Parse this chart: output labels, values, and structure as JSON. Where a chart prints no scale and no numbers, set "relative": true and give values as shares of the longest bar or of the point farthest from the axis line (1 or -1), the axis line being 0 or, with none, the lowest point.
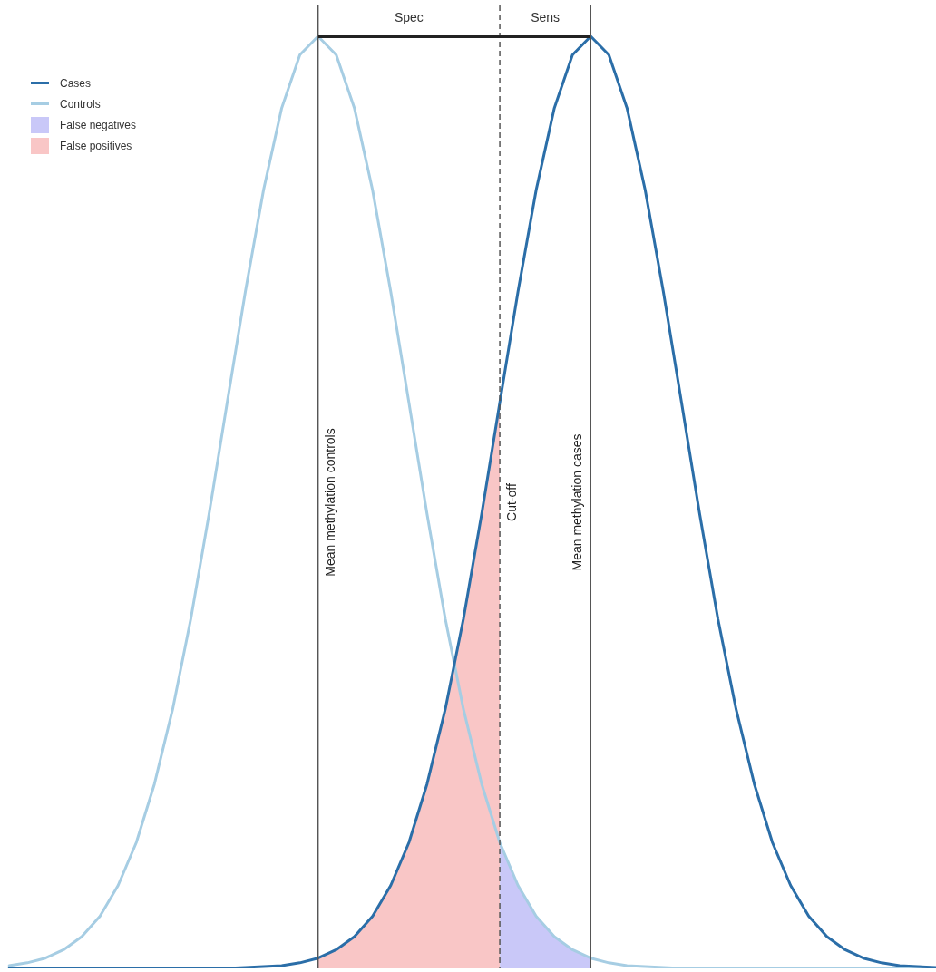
{
  "chart_data": {
    "type": "line",
    "relative": true,
    "tick_labels": false,
    "grid": false,
    "legend": "top left",
    "marker": "none",
    "categories": [
      null,
      null,
      null,
      null,
      null,
      null,
      null,
      null,
      null,
      null,
      null,
      null,
      null,
      null,
      null,
      null,
      null,
      null,
      null,
      null,
      null,
      null,
      null,
      null,
      null,
      null,
      null,
      null,
      null,
      null,
      null,
      null,
      null,
      null,
      null,
      null,
      null,
      null,
      null,
      null,
      null,
      null,
      null,
      null,
      null,
      null,
      null,
      null,
      null,
      null,
      null,
      null
    ],
    "series": [
      {
        "name": "Cases",
        "color": "#2b6ea8",
        "values": [
          0,
          0,
          0,
          0,
          0,
          0,
          0,
          0,
          0,
          0,
          0,
          0,
          0,
          0.001,
          0.002,
          0.003,
          0.006,
          0.011,
          0.02,
          0.034,
          0.056,
          0.089,
          0.135,
          0.198,
          0.278,
          0.375,
          0.487,
          0.607,
          0.726,
          0.835,
          0.923,
          0.98,
          1,
          0.98,
          0.923,
          0.835,
          0.726,
          0.607,
          0.487,
          0.375,
          0.278,
          0.198,
          0.135,
          0.089,
          0.056,
          0.034,
          0.02,
          0.011,
          0.006,
          0.003,
          0.002,
          0.001
        ]
      },
      {
        "name": "Controls",
        "color": "#a6cde3",
        "values": [
          0.003,
          0.006,
          0.011,
          0.02,
          0.034,
          0.056,
          0.089,
          0.135,
          0.198,
          0.278,
          0.375,
          0.487,
          0.607,
          0.726,
          0.835,
          0.923,
          0.98,
          1,
          0.98,
          0.923,
          0.835,
          0.726,
          0.607,
          0.487,
          0.375,
          0.278,
          0.198,
          0.135,
          0.089,
          0.056,
          0.034,
          0.02,
          0.011,
          0.006,
          0.003,
          0.002,
          0.001,
          0,
          0,
          0,
          0,
          0,
          0,
          0,
          0,
          0,
          0,
          0,
          0,
          0,
          0,
          0
        ]
      },
      {
        "name": "False negatives",
        "type": "area",
        "color": "#c9c8f8",
        "values": [
          null,
          null,
          null,
          null,
          null,
          null,
          null,
          null,
          null,
          null,
          null,
          null,
          null,
          null,
          null,
          null,
          null,
          null,
          null,
          null,
          null,
          null,
          null,
          null,
          null,
          null,
          null,
          0.135,
          0.089,
          0.056,
          0.034,
          0.02,
          0.011,
          null,
          null,
          null,
          null,
          null,
          null,
          null,
          null,
          null,
          null,
          null,
          null,
          null,
          null,
          null,
          null,
          null,
          null,
          null
        ]
      },
      {
        "name": "False positives",
        "type": "area",
        "color": "#f9c6c6",
        "values": [
          null,
          null,
          null,
          null,
          null,
          null,
          null,
          null,
          null,
          null,
          null,
          null,
          null,
          null,
          null,
          null,
          null,
          0.011,
          0.02,
          0.034,
          0.056,
          0.089,
          0.135,
          0.198,
          0.278,
          0.375,
          0.487,
          0.607,
          null,
          null,
          null,
          null,
          null,
          null,
          null,
          null,
          null,
          null,
          null,
          null,
          null,
          null,
          null,
          null,
          null,
          null,
          null,
          null,
          null,
          null,
          null,
          null
        ]
      }
    ],
    "annotations": [
      "Mean methylation controls",
      "Cut-off",
      "Mean methylation cases",
      "Spec",
      "Sens"
    ]
  }
}
